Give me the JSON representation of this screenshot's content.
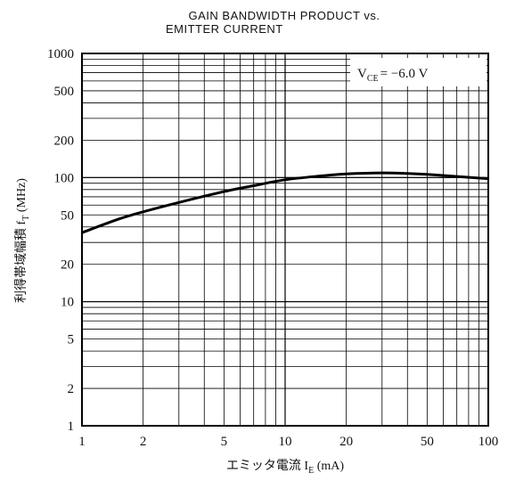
{
  "chart_data": {
    "type": "line",
    "title_lines": [
      "GAIN BANDWIDTH PRODUCT vs.",
      "EMITTER CURRENT"
    ],
    "xlabel": {
      "prefix": "エミッタ電流 I",
      "sub": "E",
      "suffix": " (mA)"
    },
    "ylabel": {
      "prefix": "利得帯域幅積 f",
      "sub": "T",
      "suffix": " (MHz)"
    },
    "condition": {
      "prefix": "V",
      "sub": "CE",
      "suffix": "= −6.0 V"
    },
    "x_scale": "log",
    "y_scale": "log",
    "xlim": [
      1,
      100
    ],
    "ylim": [
      1,
      1000
    ],
    "x_tick_labels": [
      "1",
      "2",
      "5",
      "10",
      "20",
      "50",
      "100"
    ],
    "y_tick_labels": [
      "1000",
      "500",
      "200",
      "100",
      "50",
      "20",
      "10",
      "5",
      "2",
      "1"
    ],
    "grid": true,
    "series": [
      {
        "x": [
          1,
          1.5,
          2,
          3,
          5,
          7,
          10,
          15,
          20,
          30,
          40,
          50,
          70,
          100
        ],
        "y": [
          36,
          46,
          53,
          63,
          77,
          86,
          96,
          103,
          107,
          109,
          108,
          106,
          102,
          98
        ]
      }
    ]
  }
}
